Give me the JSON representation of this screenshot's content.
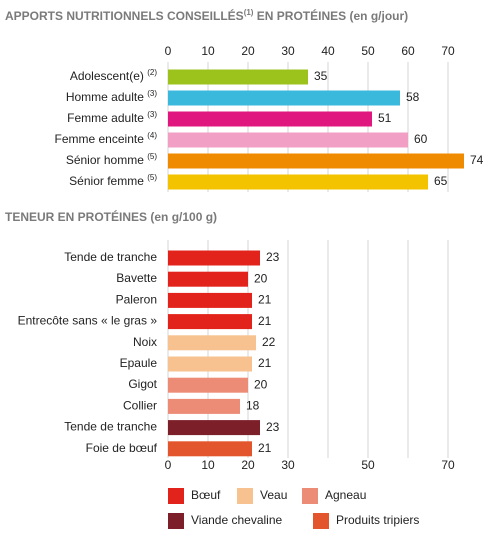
{
  "chart_data": [
    {
      "type": "bar",
      "orientation": "horizontal",
      "axis_position": "top",
      "grid": true,
      "title": [
        "APPORTS NUTRITIONNELS CONSEILLÉS",
        "(1)",
        " EN PROTÉINES (en g/jour)"
      ],
      "categories": [
        "Adolescent(e)",
        "Homme adulte",
        "Femme adulte",
        "Femme enceinte",
        "Sénior homme",
        "Sénior femme"
      ],
      "category_notes": [
        "(2)",
        "(3)",
        "(3)",
        "(4)",
        "(5)",
        "(5)"
      ],
      "values": [
        35,
        58,
        51,
        60,
        74,
        65
      ],
      "colors": [
        "#9cc31c",
        "#3bb9dd",
        "#e0177e",
        "#f19fc5",
        "#ef8b00",
        "#f4c300"
      ],
      "xlim": [
        0,
        75
      ],
      "xticks": [
        0,
        10,
        20,
        30,
        40,
        50,
        60,
        70
      ]
    },
    {
      "type": "bar",
      "orientation": "horizontal",
      "axis_position": "bottom",
      "grid": true,
      "title": "TENEUR EN PROTÉINES (en g/100 g)",
      "categories": [
        "Tende de tranche",
        "Bavette",
        "Paleron",
        "Entrecôte sans « le gras »",
        "Noix",
        "Epaule",
        "Gigot",
        "Collier",
        "Tende de tranche",
        "Foie de bœuf"
      ],
      "series": [
        {
          "name": "Bœuf",
          "color": "#e2231b",
          "values": [
            23,
            20,
            21,
            21,
            null,
            null,
            null,
            null,
            null,
            null
          ]
        },
        {
          "name": "Veau",
          "color": "#f7c290",
          "values": [
            null,
            null,
            null,
            null,
            22,
            21,
            null,
            null,
            null,
            null
          ]
        },
        {
          "name": "Agneau",
          "color": "#ec8c77",
          "values": [
            null,
            null,
            null,
            null,
            null,
            null,
            20,
            18,
            null,
            null
          ]
        },
        {
          "name": "Viande chevaline",
          "color": "#7c1f29",
          "values": [
            null,
            null,
            null,
            null,
            null,
            null,
            null,
            null,
            23,
            null
          ]
        },
        {
          "name": "Produits tripiers",
          "color": "#e3552c",
          "values": [
            null,
            null,
            null,
            null,
            null,
            null,
            null,
            null,
            null,
            21
          ]
        }
      ],
      "xlim": [
        0,
        75
      ],
      "xticks": [
        0,
        10,
        20,
        30,
        {
          "value": 40,
          "label": null
        },
        50,
        {
          "value": 60,
          "label": null
        },
        70
      ]
    }
  ]
}
